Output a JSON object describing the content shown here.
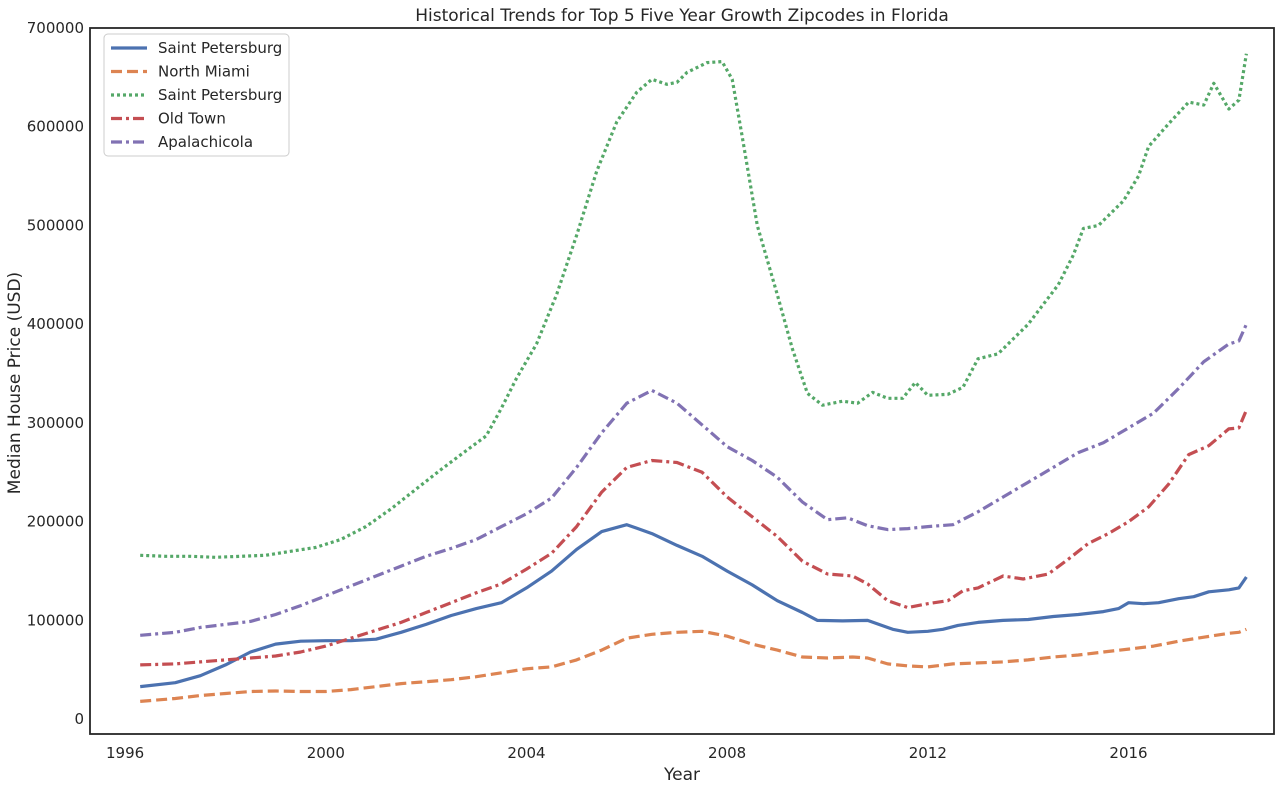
{
  "chart_data": {
    "type": "line",
    "title": "Historical Trends for Top 5 Five Year Growth Zipcodes in Florida",
    "xlabel": "Year",
    "ylabel": "Median House Price (USD)",
    "xlim": [
      1995.3,
      2018.9
    ],
    "ylim": [
      -15000,
      700000
    ],
    "x_ticks": [
      1996,
      2000,
      2004,
      2008,
      2012,
      2016
    ],
    "x_tick_labels": [
      "1996",
      "2000",
      "2004",
      "2008",
      "2012",
      "2016"
    ],
    "y_ticks": [
      0,
      100000,
      200000,
      300000,
      400000,
      500000,
      600000,
      700000
    ],
    "y_tick_labels": [
      "0",
      "100000",
      "200000",
      "300000",
      "400000",
      "500000",
      "600000",
      "700000"
    ],
    "grid": false,
    "legend_position": "upper-left",
    "series": [
      {
        "name": "Saint Petersburg",
        "color": "#4c72b0",
        "dash": "solid",
        "points": [
          [
            1996.3,
            33000
          ],
          [
            1997,
            37000
          ],
          [
            1997.5,
            44000
          ],
          [
            1998,
            55000
          ],
          [
            1998.5,
            68000
          ],
          [
            1999,
            76000
          ],
          [
            1999.5,
            79000
          ],
          [
            2000,
            79500
          ],
          [
            2000.5,
            79500
          ],
          [
            2001,
            81000
          ],
          [
            2001.5,
            88000
          ],
          [
            2002,
            96000
          ],
          [
            2002.5,
            105000
          ],
          [
            2003,
            112000
          ],
          [
            2003.5,
            118000
          ],
          [
            2004,
            133000
          ],
          [
            2004.5,
            150000
          ],
          [
            2005,
            172000
          ],
          [
            2005.5,
            190000
          ],
          [
            2006,
            197000
          ],
          [
            2006.5,
            188000
          ],
          [
            2007,
            176000
          ],
          [
            2007.5,
            165000
          ],
          [
            2008,
            150000
          ],
          [
            2008.5,
            136000
          ],
          [
            2009,
            120000
          ],
          [
            2009.5,
            108000
          ],
          [
            2009.8,
            100000
          ],
          [
            2010.3,
            99500
          ],
          [
            2010.8,
            100000
          ],
          [
            2011.3,
            91000
          ],
          [
            2011.6,
            88000
          ],
          [
            2012,
            89000
          ],
          [
            2012.3,
            91000
          ],
          [
            2012.6,
            95000
          ],
          [
            2013,
            98000
          ],
          [
            2013.5,
            100000
          ],
          [
            2014,
            101000
          ],
          [
            2014.5,
            104000
          ],
          [
            2015,
            106000
          ],
          [
            2015.5,
            109000
          ],
          [
            2015.8,
            112000
          ],
          [
            2016,
            118000
          ],
          [
            2016.3,
            117000
          ],
          [
            2016.6,
            118000
          ],
          [
            2017,
            122000
          ],
          [
            2017.3,
            124000
          ],
          [
            2017.6,
            129000
          ],
          [
            2018,
            131000
          ],
          [
            2018.2,
            133000
          ],
          [
            2018.35,
            144000
          ]
        ]
      },
      {
        "name": "North Miami",
        "color": "#dd8452",
        "dash": "dashed",
        "points": [
          [
            1996.3,
            18000
          ],
          [
            1997,
            21000
          ],
          [
            1997.5,
            24000
          ],
          [
            1998,
            26000
          ],
          [
            1998.5,
            28000
          ],
          [
            1999,
            28500
          ],
          [
            1999.5,
            28000
          ],
          [
            2000,
            28000
          ],
          [
            2000.5,
            30000
          ],
          [
            2001,
            33000
          ],
          [
            2001.5,
            36000
          ],
          [
            2002,
            38000
          ],
          [
            2002.5,
            40000
          ],
          [
            2003,
            43000
          ],
          [
            2003.5,
            47000
          ],
          [
            2004,
            51000
          ],
          [
            2004.5,
            53000
          ],
          [
            2005,
            60000
          ],
          [
            2005.5,
            70000
          ],
          [
            2006,
            82000
          ],
          [
            2006.5,
            86000
          ],
          [
            2007,
            88000
          ],
          [
            2007.5,
            89000
          ],
          [
            2008,
            84000
          ],
          [
            2008.5,
            76000
          ],
          [
            2009,
            70000
          ],
          [
            2009.5,
            63000
          ],
          [
            2010,
            62000
          ],
          [
            2010.5,
            63000
          ],
          [
            2010.8,
            62000
          ],
          [
            2011.2,
            56000
          ],
          [
            2011.6,
            54000
          ],
          [
            2012,
            53000
          ],
          [
            2012.5,
            56000
          ],
          [
            2013,
            57000
          ],
          [
            2013.5,
            58000
          ],
          [
            2014,
            60000
          ],
          [
            2014.5,
            63000
          ],
          [
            2015,
            65000
          ],
          [
            2015.5,
            68000
          ],
          [
            2016,
            71000
          ],
          [
            2016.5,
            74000
          ],
          [
            2017,
            79000
          ],
          [
            2017.5,
            83000
          ],
          [
            2018,
            87000
          ],
          [
            2018.2,
            88000
          ],
          [
            2018.35,
            91000
          ]
        ]
      },
      {
        "name": "Saint Petersburg",
        "color": "#55a868",
        "dash": "dotted",
        "points": [
          [
            1996.3,
            166000
          ],
          [
            1996.8,
            165000
          ],
          [
            1997.3,
            165000
          ],
          [
            1997.8,
            164000
          ],
          [
            1998.3,
            165000
          ],
          [
            1998.8,
            166000
          ],
          [
            1999.3,
            170000
          ],
          [
            1999.8,
            174000
          ],
          [
            2000.3,
            182000
          ],
          [
            2000.8,
            195000
          ],
          [
            2001.3,
            213000
          ],
          [
            2001.8,
            233000
          ],
          [
            2002.3,
            253000
          ],
          [
            2002.8,
            272000
          ],
          [
            2003.2,
            287000
          ],
          [
            2003.5,
            315000
          ],
          [
            2003.8,
            345000
          ],
          [
            2004.2,
            380000
          ],
          [
            2004.6,
            430000
          ],
          [
            2005,
            490000
          ],
          [
            2005.4,
            555000
          ],
          [
            2005.8,
            605000
          ],
          [
            2006.2,
            635000
          ],
          [
            2006.5,
            648000
          ],
          [
            2006.8,
            643000
          ],
          [
            2007,
            645000
          ],
          [
            2007.2,
            655000
          ],
          [
            2007.6,
            665000
          ],
          [
            2007.9,
            666000
          ],
          [
            2008.1,
            648000
          ],
          [
            2008.3,
            590000
          ],
          [
            2008.6,
            500000
          ],
          [
            2009,
            430000
          ],
          [
            2009.3,
            375000
          ],
          [
            2009.6,
            330000
          ],
          [
            2009.9,
            318000
          ],
          [
            2010.3,
            322000
          ],
          [
            2010.6,
            320000
          ],
          [
            2010.9,
            331000
          ],
          [
            2011.2,
            325000
          ],
          [
            2011.5,
            325000
          ],
          [
            2011.75,
            341000
          ],
          [
            2012,
            328000
          ],
          [
            2012.4,
            329000
          ],
          [
            2012.7,
            336000
          ],
          [
            2013,
            365000
          ],
          [
            2013.4,
            370000
          ],
          [
            2013.7,
            385000
          ],
          [
            2014,
            400000
          ],
          [
            2014.3,
            420000
          ],
          [
            2014.6,
            440000
          ],
          [
            2014.9,
            470000
          ],
          [
            2015.1,
            497000
          ],
          [
            2015.4,
            500000
          ],
          [
            2015.6,
            510000
          ],
          [
            2015.9,
            525000
          ],
          [
            2016.2,
            550000
          ],
          [
            2016.4,
            580000
          ],
          [
            2016.8,
            603000
          ],
          [
            2017.2,
            625000
          ],
          [
            2017.5,
            622000
          ],
          [
            2017.7,
            644000
          ],
          [
            2018,
            618000
          ],
          [
            2018.2,
            627000
          ],
          [
            2018.35,
            674000
          ]
        ]
      },
      {
        "name": "Old Town",
        "color": "#c44e52",
        "dash": "dashdot",
        "points": [
          [
            1996.3,
            55000
          ],
          [
            1997,
            56000
          ],
          [
            1997.5,
            58000
          ],
          [
            1998,
            60000
          ],
          [
            1998.5,
            62000
          ],
          [
            1999,
            64000
          ],
          [
            1999.5,
            68000
          ],
          [
            2000,
            74000
          ],
          [
            2000.5,
            82000
          ],
          [
            2001,
            90000
          ],
          [
            2001.5,
            98000
          ],
          [
            2002,
            108000
          ],
          [
            2002.5,
            118000
          ],
          [
            2003,
            128000
          ],
          [
            2003.5,
            137000
          ],
          [
            2004,
            152000
          ],
          [
            2004.5,
            168000
          ],
          [
            2005,
            195000
          ],
          [
            2005.5,
            230000
          ],
          [
            2006,
            255000
          ],
          [
            2006.5,
            262000
          ],
          [
            2007,
            260000
          ],
          [
            2007.5,
            250000
          ],
          [
            2008,
            225000
          ],
          [
            2008.5,
            205000
          ],
          [
            2009,
            185000
          ],
          [
            2009.5,
            160000
          ],
          [
            2010,
            147000
          ],
          [
            2010.5,
            145000
          ],
          [
            2010.8,
            137000
          ],
          [
            2011.2,
            120000
          ],
          [
            2011.6,
            113000
          ],
          [
            2012,
            117000
          ],
          [
            2012.4,
            120000
          ],
          [
            2012.7,
            130000
          ],
          [
            2013,
            133000
          ],
          [
            2013.5,
            145000
          ],
          [
            2013.9,
            142000
          ],
          [
            2014.4,
            147000
          ],
          [
            2014.8,
            162000
          ],
          [
            2015.2,
            178000
          ],
          [
            2015.6,
            188000
          ],
          [
            2016,
            200000
          ],
          [
            2016.4,
            215000
          ],
          [
            2016.8,
            238000
          ],
          [
            2017.2,
            268000
          ],
          [
            2017.6,
            277000
          ],
          [
            2018,
            294000
          ],
          [
            2018.2,
            295000
          ],
          [
            2018.35,
            313000
          ]
        ]
      },
      {
        "name": "Apalachicola",
        "color": "#8172b3",
        "dash": "dashdot",
        "points": [
          [
            1996.3,
            85000
          ],
          [
            1997,
            88000
          ],
          [
            1997.5,
            93000
          ],
          [
            1998,
            96000
          ],
          [
            1998.5,
            99000
          ],
          [
            1999,
            106000
          ],
          [
            1999.5,
            115000
          ],
          [
            2000,
            125000
          ],
          [
            2000.5,
            135000
          ],
          [
            2001,
            145000
          ],
          [
            2001.5,
            155000
          ],
          [
            2002,
            165000
          ],
          [
            2002.5,
            173000
          ],
          [
            2003,
            182000
          ],
          [
            2003.5,
            195000
          ],
          [
            2004,
            208000
          ],
          [
            2004.5,
            224000
          ],
          [
            2005,
            255000
          ],
          [
            2005.5,
            290000
          ],
          [
            2006,
            320000
          ],
          [
            2006.5,
            333000
          ],
          [
            2007,
            320000
          ],
          [
            2007.5,
            298000
          ],
          [
            2008,
            276000
          ],
          [
            2008.5,
            262000
          ],
          [
            2009,
            245000
          ],
          [
            2009.5,
            220000
          ],
          [
            2010,
            202000
          ],
          [
            2010.4,
            204000
          ],
          [
            2010.8,
            196000
          ],
          [
            2011.2,
            192000
          ],
          [
            2011.6,
            193000
          ],
          [
            2012,
            195000
          ],
          [
            2012.5,
            197000
          ],
          [
            2013,
            210000
          ],
          [
            2013.5,
            225000
          ],
          [
            2014,
            240000
          ],
          [
            2014.5,
            255000
          ],
          [
            2015,
            270000
          ],
          [
            2015.5,
            280000
          ],
          [
            2016,
            295000
          ],
          [
            2016.5,
            310000
          ],
          [
            2017,
            335000
          ],
          [
            2017.5,
            362000
          ],
          [
            2018,
            380000
          ],
          [
            2018.2,
            383000
          ],
          [
            2018.35,
            400000
          ]
        ]
      }
    ]
  }
}
